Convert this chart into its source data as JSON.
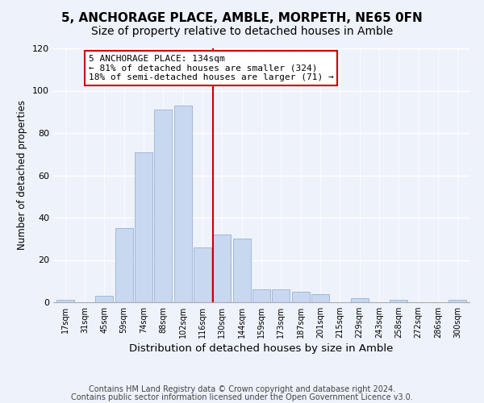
{
  "title": "5, ANCHORAGE PLACE, AMBLE, MORPETH, NE65 0FN",
  "subtitle": "Size of property relative to detached houses in Amble",
  "xlabel": "Distribution of detached houses by size in Amble",
  "ylabel": "Number of detached properties",
  "bar_labels": [
    "17sqm",
    "31sqm",
    "45sqm",
    "59sqm",
    "74sqm",
    "88sqm",
    "102sqm",
    "116sqm",
    "130sqm",
    "144sqm",
    "159sqm",
    "173sqm",
    "187sqm",
    "201sqm",
    "215sqm",
    "229sqm",
    "243sqm",
    "258sqm",
    "272sqm",
    "286sqm",
    "300sqm"
  ],
  "bar_values": [
    1,
    0,
    3,
    35,
    71,
    91,
    93,
    26,
    32,
    30,
    6,
    6,
    5,
    4,
    0,
    2,
    0,
    1,
    0,
    0,
    1
  ],
  "bar_color": "#c8d8f0",
  "bar_edge_color": "#a0b8d8",
  "vline_index": 8,
  "vline_color": "#cc0000",
  "annotation_text": "5 ANCHORAGE PLACE: 134sqm\n← 81% of detached houses are smaller (324)\n18% of semi-detached houses are larger (71) →",
  "annotation_box_color": "#ffffff",
  "annotation_box_edge": "#cc0000",
  "footer_line1": "Contains HM Land Registry data © Crown copyright and database right 2024.",
  "footer_line2": "Contains public sector information licensed under the Open Government Licence v3.0.",
  "ylim": [
    0,
    120
  ],
  "background_color": "#eef2fb",
  "title_fontsize": 11,
  "xlabel_fontsize": 9.5,
  "ylabel_fontsize": 8.5,
  "footer_fontsize": 7,
  "tick_fontsize": 7,
  "annotation_fontsize": 8
}
